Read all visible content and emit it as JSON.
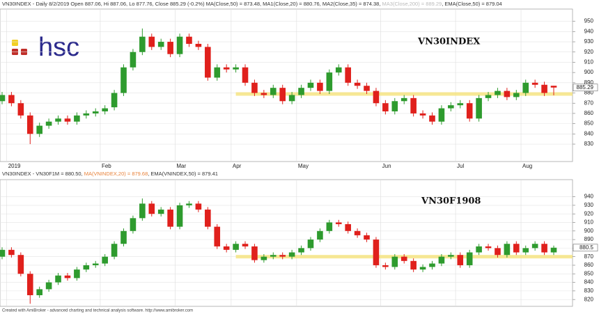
{
  "logo": "hsc",
  "footer": "Created with AmiBroker - advanced charting and technical analysis software. http://www.amibroker.com",
  "chart_data": [
    {
      "type": "candlestick",
      "title": "VN30INDEX",
      "header": [
        "VN30INDEX - Daily 8/2/2019 Open 887.06, Hi 887.06, Lo 877.76, Close 885.29 (-0.2%) MA(Close,50) = 873.48, MA1(Close,20) = 880.76, MA2(Close,35) = 874.38, ",
        "MA3(Close,200) = 889.29",
        ", EMA(Close,50) = 879.04"
      ],
      "categories": [
        null,
        "2019",
        null,
        null,
        null,
        null,
        null,
        null,
        null,
        null,
        null,
        "Feb",
        null,
        null,
        null,
        null,
        null,
        null,
        null,
        "Mar",
        null,
        null,
        null,
        null,
        null,
        "Apr",
        null,
        null,
        null,
        null,
        null,
        null,
        "May",
        null,
        null,
        null,
        null,
        null,
        null,
        null,
        null,
        "Jun",
        null,
        null,
        null,
        null,
        null,
        null,
        null,
        "Jul",
        null,
        null,
        null,
        null,
        null,
        null,
        "Aug",
        null,
        null,
        null
      ],
      "open": [
        872,
        878,
        870,
        858,
        840,
        848,
        852,
        855,
        852,
        858,
        860,
        862,
        866,
        880,
        905,
        920,
        935,
        925,
        930,
        918,
        935,
        928,
        925,
        895,
        905,
        903,
        905,
        890,
        880,
        878,
        885,
        872,
        878,
        885,
        890,
        882,
        900,
        905,
        890,
        887,
        882,
        870,
        862,
        872,
        875,
        860,
        858,
        852,
        865,
        868,
        870,
        855,
        875,
        878,
        882,
        876,
        880,
        890,
        888,
        887.06
      ],
      "high": [
        881,
        881,
        873,
        861,
        851,
        855,
        858,
        858,
        861,
        863,
        865,
        868,
        883,
        908,
        923,
        943,
        938,
        933,
        933,
        938,
        938,
        931,
        928,
        908,
        908,
        908,
        908,
        893,
        883,
        888,
        888,
        881,
        888,
        893,
        893,
        903,
        908,
        908,
        893,
        890,
        885,
        873,
        875,
        878,
        878,
        863,
        861,
        868,
        871,
        873,
        873,
        878,
        881,
        885,
        885,
        883,
        893,
        893,
        891,
        887.06
      ],
      "low": [
        869,
        867,
        855,
        830,
        837,
        845,
        849,
        849,
        849,
        855,
        857,
        859,
        863,
        877,
        902,
        917,
        922,
        922,
        915,
        915,
        925,
        922,
        892,
        892,
        900,
        900,
        887,
        877,
        875,
        875,
        869,
        869,
        875,
        882,
        879,
        879,
        897,
        887,
        884,
        879,
        867,
        859,
        859,
        869,
        857,
        855,
        849,
        849,
        862,
        865,
        852,
        852,
        872,
        875,
        873,
        873,
        877,
        885,
        877,
        877.76
      ],
      "close": [
        878,
        870,
        858,
        840,
        848,
        852,
        855,
        852,
        858,
        860,
        862,
        865,
        880,
        905,
        920,
        935,
        925,
        930,
        918,
        935,
        928,
        925,
        895,
        905,
        903,
        905,
        890,
        880,
        878,
        885,
        872,
        878,
        885,
        890,
        882,
        900,
        905,
        890,
        887,
        882,
        870,
        862,
        872,
        875,
        860,
        858,
        852,
        865,
        868,
        870,
        855,
        875,
        878,
        882,
        876,
        880,
        890,
        888,
        880,
        885.29
      ],
      "ylim": [
        813,
        962
      ],
      "yticks": [
        830,
        840,
        850,
        860,
        870,
        880,
        890,
        900,
        910,
        920,
        930,
        940,
        950
      ],
      "support_level": 879,
      "up_color": "#2e9b2e",
      "down_color": "#e0201c",
      "support_color": "#f5e27a"
    },
    {
      "type": "candlestick",
      "title": "VN30F1908",
      "header": [
        "VN30INDEX - VN30F1M = 880.50, ",
        "MA(VNINDEX,20) = 879.68",
        ", EMA(VNINDEX,50) = 879.41"
      ],
      "open": [
        870,
        878,
        872,
        850,
        825,
        832,
        840,
        848,
        845,
        855,
        860,
        862,
        870,
        885,
        900,
        915,
        932,
        920,
        925,
        905,
        930,
        932,
        925,
        905,
        882,
        878,
        885,
        882,
        866,
        870,
        872,
        870,
        875,
        880,
        890,
        900,
        910,
        908,
        900,
        895,
        890,
        860,
        858,
        870,
        865,
        855,
        858,
        862,
        870,
        872,
        860,
        875,
        882,
        880,
        872,
        885,
        875,
        880,
        885,
        875
      ],
      "high": [
        881,
        881,
        875,
        853,
        835,
        843,
        851,
        851,
        858,
        863,
        865,
        873,
        888,
        903,
        918,
        938,
        935,
        928,
        928,
        933,
        935,
        935,
        928,
        908,
        885,
        888,
        888,
        885,
        873,
        875,
        875,
        878,
        883,
        893,
        903,
        913,
        913,
        911,
        903,
        898,
        893,
        863,
        873,
        873,
        868,
        861,
        865,
        873,
        875,
        875,
        878,
        885,
        885,
        883,
        888,
        888,
        883,
        888,
        888,
        883
      ],
      "low": [
        867,
        869,
        847,
        815,
        822,
        829,
        837,
        842,
        842,
        852,
        857,
        859,
        867,
        882,
        897,
        912,
        917,
        917,
        902,
        902,
        927,
        922,
        902,
        879,
        875,
        875,
        879,
        863,
        863,
        867,
        867,
        867,
        872,
        877,
        887,
        897,
        905,
        897,
        892,
        887,
        857,
        855,
        855,
        862,
        852,
        852,
        855,
        859,
        867,
        857,
        857,
        872,
        877,
        869,
        869,
        872,
        872,
        877,
        872,
        872
      ],
      "close": [
        878,
        872,
        850,
        825,
        832,
        840,
        848,
        845,
        855,
        860,
        862,
        870,
        885,
        900,
        915,
        932,
        920,
        925,
        905,
        930,
        932,
        925,
        905,
        882,
        878,
        885,
        882,
        866,
        870,
        872,
        870,
        875,
        880,
        890,
        900,
        910,
        908,
        900,
        895,
        890,
        860,
        858,
        870,
        865,
        855,
        858,
        862,
        870,
        872,
        860,
        875,
        882,
        880,
        872,
        885,
        875,
        880,
        885,
        875,
        880.5
      ],
      "ylim": [
        812,
        960
      ],
      "yticks": [
        820,
        830,
        840,
        850,
        860,
        870,
        880,
        890,
        900,
        910,
        920,
        930,
        940
      ],
      "support_level": 870,
      "up_color": "#2e9b2e",
      "down_color": "#e0201c",
      "support_color": "#f5e27a"
    }
  ]
}
